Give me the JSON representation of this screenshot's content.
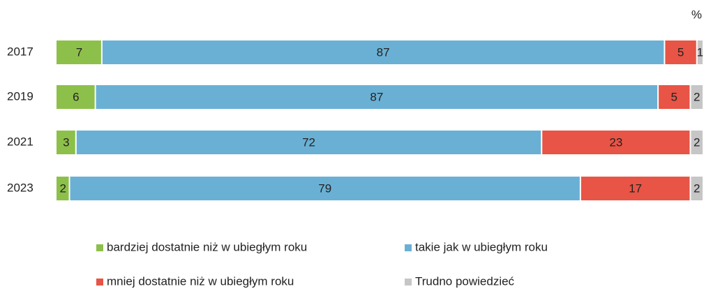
{
  "chart_data": {
    "type": "stacked-bar-horizontal",
    "unit": "%",
    "categories": [
      "2017",
      "2019",
      "2021",
      "2023"
    ],
    "xlim": [
      0,
      100
    ],
    "series": [
      {
        "name": "bardziej dostatnie niż w ubiegłym roku",
        "color": "#8dc04a",
        "values": [
          7,
          6,
          3,
          2
        ]
      },
      {
        "name": "takie jak w ubiegłym roku",
        "color": "#6ab0d4",
        "values": [
          87,
          87,
          72,
          79
        ]
      },
      {
        "name": "mniej dostatnie niż w ubiegłym roku",
        "color": "#e85445",
        "values": [
          5,
          5,
          23,
          17
        ]
      },
      {
        "name": "Trudno powiedzieć",
        "color": "#c6c6c6",
        "values": [
          1,
          2,
          2,
          2
        ]
      }
    ]
  }
}
